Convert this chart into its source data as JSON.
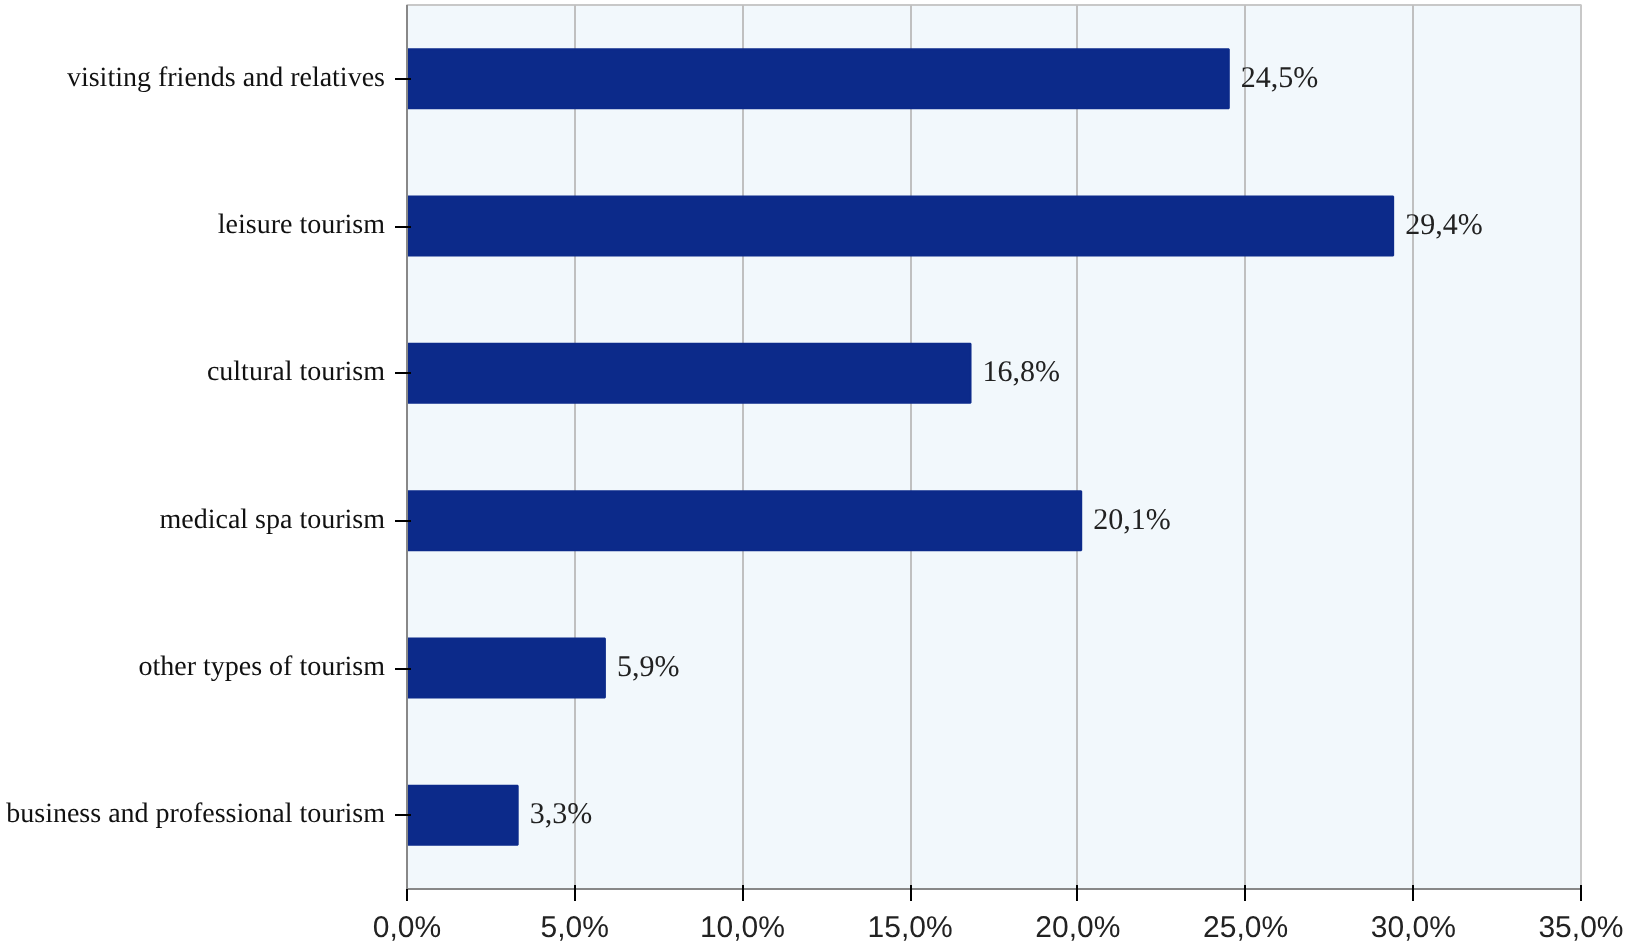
{
  "chart_data": {
    "type": "bar",
    "orientation": "horizontal",
    "categories": [
      "visiting friends and relatives",
      "leisure tourism",
      "cultural tourism",
      "medical spa tourism",
      "other types of tourism",
      "business and professional tourism"
    ],
    "values": [
      24.5,
      29.4,
      16.8,
      20.1,
      5.9,
      3.3
    ],
    "value_labels": [
      "24,5%",
      "29,4%",
      "16,8%",
      "20,1%",
      "5,9%",
      "3,3%"
    ],
    "color": "#0c2a8a",
    "xlim": [
      0,
      35
    ],
    "xticks": [
      {
        "value": 0,
        "label": "0,0%"
      },
      {
        "value": 5,
        "label": "5,0%"
      },
      {
        "value": 10,
        "label": "10,0%"
      },
      {
        "value": 15,
        "label": "15,0%"
      },
      {
        "value": 20,
        "label": "20,0%"
      },
      {
        "value": 25,
        "label": "25,0%"
      },
      {
        "value": 30,
        "label": "30,0%"
      },
      {
        "value": 35,
        "label": "35,0%"
      }
    ],
    "grid": "x"
  }
}
